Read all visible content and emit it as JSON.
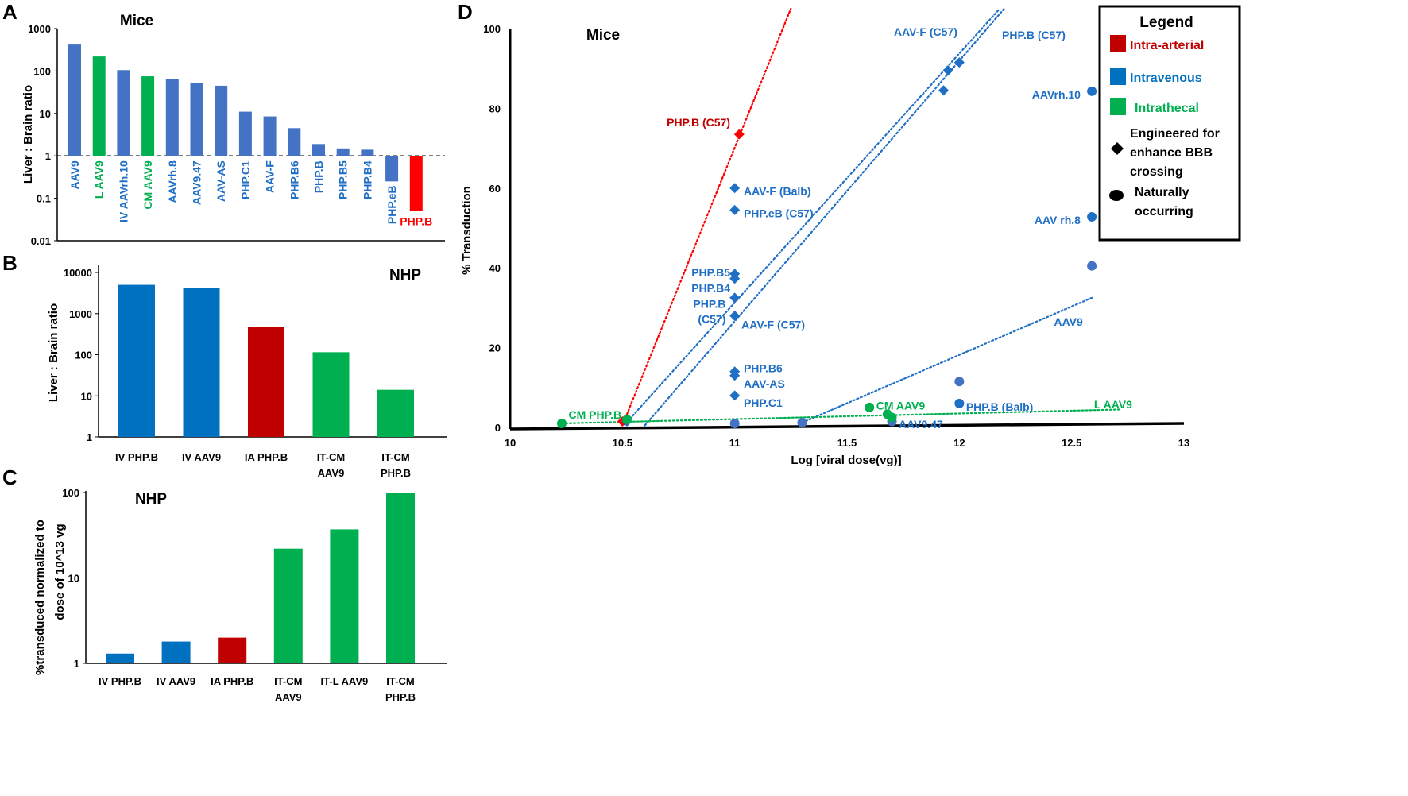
{
  "colors": {
    "blue_a": "#4472c4",
    "blue": "#0070c0",
    "green": "#00b050",
    "red_a": "#ff0000",
    "red": "#c00000",
    "scatter_red": "#ff0000",
    "scatter_blue": "#1f6fc5",
    "scatter_blue2": "#4472c4",
    "scatter_green": "#00b050",
    "label_blue": "#1f6fc5",
    "label_red": "#c00000",
    "label_green": "#00b050"
  },
  "chart_data": [
    {
      "panel_letter": "A",
      "type": "bar",
      "scale": "log",
      "title": "Mice",
      "ylabel": "Liver : Brain ratio",
      "ylim": [
        0.01,
        1000
      ],
      "yticks": [
        "0.01",
        "0.1",
        "1",
        "10",
        "100",
        "1000"
      ],
      "baseline": 1,
      "categories": [
        "AAV9",
        "L AAV9",
        "IV AAVrh.10",
        "CM AAV9",
        "AAVrh.8",
        "AAV9.47",
        "AAV-AS",
        "PHP.C1",
        "AAV-F",
        "PHP.B6",
        "PHP.B",
        "PHP.B5",
        "PHP.B4",
        "PHP.eB",
        "PHP.B"
      ],
      "values": [
        420,
        220,
        105,
        75,
        65,
        52,
        45,
        11,
        8.5,
        4.5,
        1.9,
        1.5,
        1.4,
        0.25,
        0.05
      ],
      "bar_colors": [
        "blue_a",
        "green",
        "blue_a",
        "green",
        "blue_a",
        "blue_a",
        "blue_a",
        "blue_a",
        "blue_a",
        "blue_a",
        "blue_a",
        "blue_a",
        "blue_a",
        "blue_a",
        "red_a"
      ],
      "label_colors": [
        "label_blue",
        "label_green",
        "label_blue",
        "label_green",
        "label_blue",
        "label_blue",
        "label_blue",
        "label_blue",
        "label_blue",
        "label_blue",
        "label_blue",
        "label_blue",
        "label_blue",
        "label_blue",
        "red_a"
      ]
    },
    {
      "panel_letter": "B",
      "type": "bar",
      "scale": "log",
      "title": "NHP",
      "ylabel": "Liver : Brain ratio",
      "ylim": [
        1,
        10000
      ],
      "yticks": [
        "1",
        "10",
        "100",
        "1000",
        "10000"
      ],
      "categories": [
        [
          "IV PHP.B"
        ],
        [
          "IV AAV9"
        ],
        [
          "IA PHP.B"
        ],
        [
          "IT-CM",
          "AAV9"
        ],
        [
          "IT-CM",
          "PHP.B"
        ]
      ],
      "values": [
        5000,
        4200,
        480,
        115,
        14
      ],
      "bar_colors": [
        "blue",
        "blue",
        "red",
        "green",
        "green"
      ]
    },
    {
      "panel_letter": "C",
      "type": "bar",
      "scale": "log",
      "title": "NHP",
      "ylabel": [
        "%transduced normalized to",
        "dose of 10^13 vg"
      ],
      "ylim": [
        1,
        100
      ],
      "yticks": [
        "1",
        "10",
        "100"
      ],
      "categories": [
        [
          "IV PHP.B"
        ],
        [
          "IV AAV9"
        ],
        [
          "IA PHP.B"
        ],
        [
          "IT-CM",
          "AAV9"
        ],
        [
          "IT-L AAV9"
        ],
        [
          "IT-CM",
          "PHP.B"
        ]
      ],
      "values": [
        1.3,
        1.8,
        2.0,
        22,
        37,
        100
      ],
      "bar_colors": [
        "blue",
        "blue",
        "red",
        "green",
        "green",
        "green"
      ]
    },
    {
      "panel_letter": "D",
      "type": "scatter",
      "title": "Mice",
      "xlabel": "Log [viral dose(vg)]",
      "ylabel": "% Transduction",
      "xlim": [
        10,
        13
      ],
      "ylim": [
        0,
        100
      ],
      "xticks": [
        "10",
        "10.5",
        "11",
        "11.5",
        "12",
        "12.5",
        "13"
      ],
      "yticks": [
        "0",
        "20",
        "40",
        "60",
        "80",
        "100"
      ],
      "points": [
        {
          "x": 11.02,
          "y": 73.5,
          "shape": "diamond",
          "color": "scatter_red"
        },
        {
          "x": 10.5,
          "y": 1.5,
          "shape": "diamond",
          "color": "scatter_red"
        },
        {
          "x": 11.0,
          "y": 60,
          "shape": "diamond",
          "color": "scatter_blue"
        },
        {
          "x": 11.0,
          "y": 54.5,
          "shape": "diamond",
          "color": "scatter_blue"
        },
        {
          "x": 11.0,
          "y": 38.5,
          "shape": "diamond",
          "color": "scatter_blue"
        },
        {
          "x": 11.0,
          "y": 37.3,
          "shape": "diamond",
          "color": "scatter_blue"
        },
        {
          "x": 11.0,
          "y": 32.5,
          "shape": "diamond",
          "color": "scatter_blue"
        },
        {
          "x": 11.0,
          "y": 28,
          "shape": "diamond",
          "color": "scatter_blue"
        },
        {
          "x": 11.0,
          "y": 14,
          "shape": "diamond",
          "color": "scatter_blue"
        },
        {
          "x": 11.0,
          "y": 13,
          "shape": "diamond",
          "color": "scatter_blue"
        },
        {
          "x": 11.0,
          "y": 8,
          "shape": "diamond",
          "color": "scatter_blue"
        },
        {
          "x": 10.52,
          "y": 1.5,
          "shape": "diamond",
          "color": "scatter_blue"
        },
        {
          "x": 11.93,
          "y": 84.5,
          "shape": "diamond",
          "color": "scatter_blue"
        },
        {
          "x": 11.95,
          "y": 89.5,
          "shape": "diamond",
          "color": "scatter_blue"
        },
        {
          "x": 12.0,
          "y": 91.5,
          "shape": "diamond",
          "color": "scatter_blue"
        },
        {
          "x": 12.59,
          "y": 84.3,
          "shape": "circle",
          "color": "scatter_blue"
        },
        {
          "x": 12.59,
          "y": 52.8,
          "shape": "circle",
          "color": "scatter_blue"
        },
        {
          "x": 12.59,
          "y": 40.5,
          "shape": "circle",
          "color": "scatter_blue2"
        },
        {
          "x": 12.0,
          "y": 11.5,
          "shape": "circle",
          "color": "scatter_blue2"
        },
        {
          "x": 12.0,
          "y": 6,
          "shape": "circle",
          "color": "scatter_blue"
        },
        {
          "x": 11.0,
          "y": 1,
          "shape": "circle",
          "color": "scatter_blue2"
        },
        {
          "x": 11.3,
          "y": 1.2,
          "shape": "circle",
          "color": "scatter_blue2"
        },
        {
          "x": 11.7,
          "y": 1.5,
          "shape": "circle",
          "color": "scatter_blue2"
        },
        {
          "x": 10.23,
          "y": 1,
          "shape": "circle",
          "color": "scatter_green"
        },
        {
          "x": 10.52,
          "y": 2,
          "shape": "circle",
          "color": "scatter_green"
        },
        {
          "x": 11.6,
          "y": 5,
          "shape": "circle",
          "color": "scatter_green"
        },
        {
          "x": 11.68,
          "y": 3.3,
          "shape": "circle",
          "color": "scatter_green"
        },
        {
          "x": 11.7,
          "y": 2.5,
          "shape": "circle",
          "color": "scatter_green"
        }
      ],
      "trendlines": [
        {
          "color": "scatter_red",
          "x": [
            10.5,
            11.25
          ],
          "y": [
            0.5,
            105
          ]
        },
        {
          "color": "scatter_blue",
          "x": [
            10.51,
            12.18
          ],
          "y": [
            0.7,
            105
          ]
        },
        {
          "color": "scatter_blue",
          "x": [
            10.6,
            12.2
          ],
          "y": [
            0.5,
            105
          ]
        },
        {
          "color": "scatter_blue",
          "x": [
            11.3,
            12.59
          ],
          "y": [
            1.2,
            32.5
          ]
        },
        {
          "color": "scatter_green",
          "x": [
            10.23,
            12.72
          ],
          "y": [
            1,
            4.5
          ]
        }
      ],
      "labels": [
        {
          "text": "PHP.B (C57)",
          "x": 10.98,
          "y": 76.5,
          "anchor": "end",
          "color": "label_red"
        },
        {
          "text": "AAV-F (Balb)",
          "x": 11.04,
          "y": 59.3,
          "anchor": "start",
          "color": "label_blue"
        },
        {
          "text": "PHP.eB (C57)",
          "x": 11.04,
          "y": 53.7,
          "anchor": "start",
          "color": "label_blue"
        },
        {
          "text": "PHP.B5",
          "x": 10.98,
          "y": 38.8,
          "anchor": "end",
          "color": "label_blue"
        },
        {
          "text": "PHP.B4",
          "x": 10.98,
          "y": 35.0,
          "anchor": "end",
          "color": "label_blue"
        },
        {
          "text": "PHP.B",
          "x": 10.96,
          "y": 31.0,
          "anchor": "end",
          "color": "label_blue"
        },
        {
          "text": "(C57)",
          "x": 10.96,
          "y": 27.2,
          "anchor": "end",
          "color": "label_blue"
        },
        {
          "text": "AAV-F (C57)",
          "x": 11.03,
          "y": 25.8,
          "anchor": "start",
          "color": "label_blue"
        },
        {
          "text": "PHP.B6",
          "x": 11.04,
          "y": 14.8,
          "anchor": "start",
          "color": "label_blue"
        },
        {
          "text": "AAV-AS",
          "x": 11.04,
          "y": 11.0,
          "anchor": "start",
          "color": "label_blue"
        },
        {
          "text": "PHP.C1",
          "x": 11.04,
          "y": 6.2,
          "anchor": "start",
          "color": "label_blue"
        },
        {
          "text": "AAV-F (C57)",
          "x": 11.85,
          "y": 99.2,
          "anchor": "middle",
          "color": "label_blue"
        },
        {
          "text": "PHP.B (C57)",
          "x": 12.19,
          "y": 98.4,
          "anchor": "start",
          "color": "label_blue"
        },
        {
          "text": "AAVrh.10",
          "x": 12.54,
          "y": 83.5,
          "anchor": "end",
          "color": "label_blue"
        },
        {
          "text": "AAV rh.8",
          "x": 12.54,
          "y": 52.0,
          "anchor": "end",
          "color": "label_blue"
        },
        {
          "text": "AAV9",
          "x": 12.55,
          "y": 26.5,
          "anchor": "end",
          "color": "label_blue"
        },
        {
          "text": "PHP.B (Balb)",
          "x": 12.03,
          "y": 5.2,
          "anchor": "start",
          "color": "label_blue"
        },
        {
          "text": "AAV9.47",
          "x": 11.73,
          "y": 0.8,
          "anchor": "start",
          "color": "label_blue"
        },
        {
          "text": "CM PHP.B",
          "x": 10.26,
          "y": 3.2,
          "anchor": "start",
          "color": "label_green"
        },
        {
          "text": "CM AAV9",
          "x": 11.63,
          "y": 5.5,
          "anchor": "start",
          "color": "label_green"
        },
        {
          "text": "L AAV9",
          "x": 12.6,
          "y": 5.8,
          "anchor": "start",
          "color": "label_green"
        }
      ],
      "legend": {
        "title": "Legend",
        "entries": [
          {
            "marker": "square",
            "color": "red",
            "text": [
              "Intra-arterial"
            ],
            "text_color": "red"
          },
          {
            "marker": "square",
            "color": "blue",
            "text": [
              "Intravenous"
            ],
            "text_color": "blue"
          },
          {
            "marker": "square",
            "color": "green",
            "text": [
              "Intrathecal"
            ],
            "text_color": "green"
          },
          {
            "marker": "diamond",
            "color": "#000000",
            "text": [
              "Engineered for",
              "enhance BBB",
              "crossing"
            ],
            "text_color": "#000000"
          },
          {
            "marker": "circle",
            "color": "#000000",
            "text": [
              "Naturally",
              "occurring"
            ],
            "text_color": "#000000"
          }
        ]
      }
    }
  ]
}
